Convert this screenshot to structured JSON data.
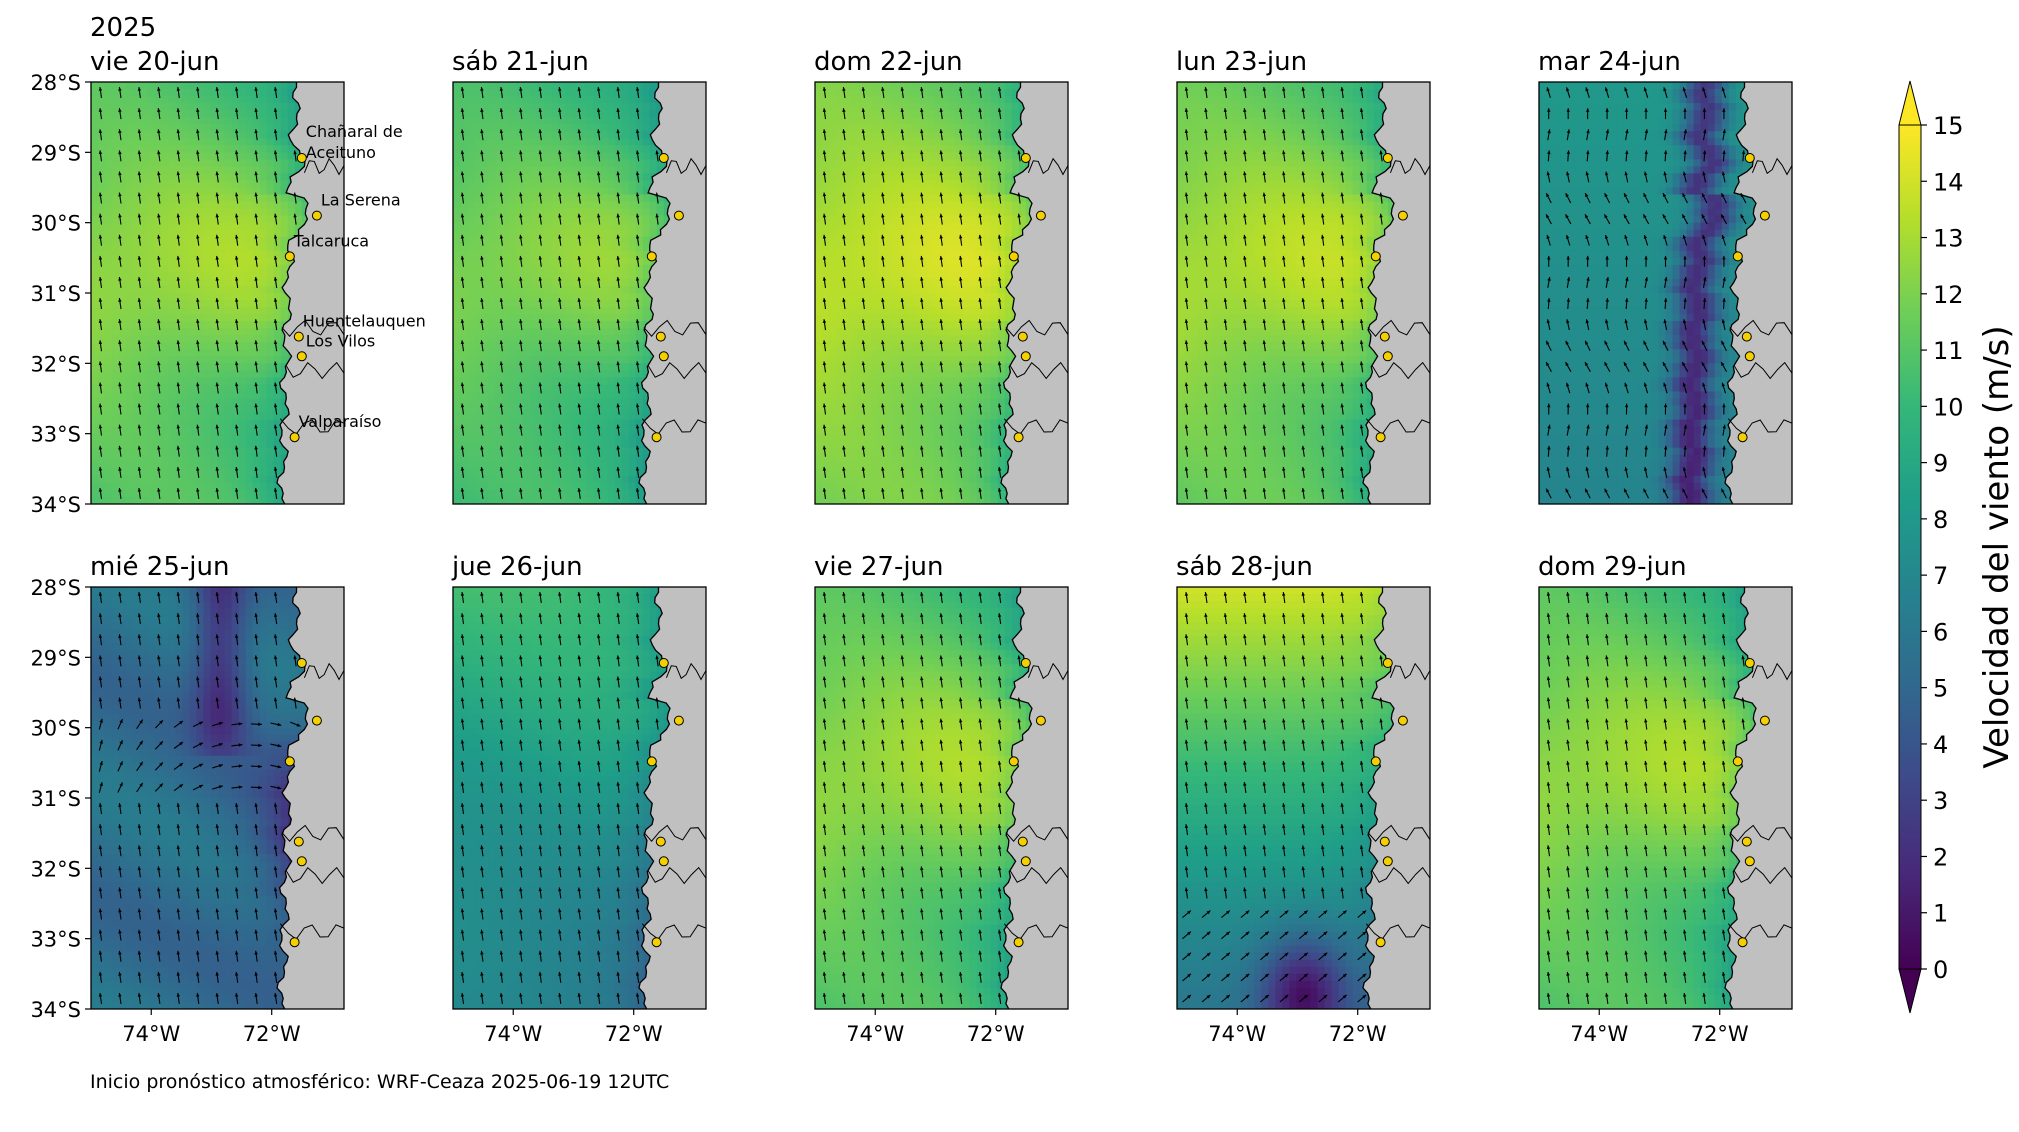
{
  "year_label": "2025",
  "footer": "Inicio pronóstico atmosférico: WRF-Ceaza 2025-06-19 12UTC",
  "panels": [
    {
      "date": "vie 20-jun",
      "regime": "strong",
      "peak": 13.0
    },
    {
      "date": "sáb 21-jun",
      "regime": "strong",
      "peak": 12.5
    },
    {
      "date": "dom 22-jun",
      "regime": "strong",
      "peak": 14.0
    },
    {
      "date": "lun 23-jun",
      "regime": "strong",
      "peak": 13.5
    },
    {
      "date": "mar 24-jun",
      "regime": "weak",
      "peak": 8.0
    },
    {
      "date": "mié 25-jun",
      "regime": "calm",
      "peak": 5.5
    },
    {
      "date": "jue 26-jun",
      "regime": "moderate",
      "peak": 10.0
    },
    {
      "date": "vie 27-jun",
      "regime": "strong",
      "peak": 13.0
    },
    {
      "date": "sáb 28-jun",
      "regime": "mixed",
      "peak": 14.0
    },
    {
      "date": "dom 29-jun",
      "regime": "strong",
      "peak": 13.0
    }
  ],
  "lat_ticks": [
    "28°S",
    "29°S",
    "30°S",
    "31°S",
    "32°S",
    "33°S",
    "34°S"
  ],
  "lon_ticks": [
    "74°W",
    "72°W"
  ],
  "map_extent": {
    "lon": [
      -75.0,
      -70.8
    ],
    "lat": [
      -34.0,
      -28.0
    ]
  },
  "locations": [
    {
      "name": "Chañaral de\nAceituno",
      "lon": -71.5,
      "lat": -29.08
    },
    {
      "name": "La Serena",
      "lon": -71.25,
      "lat": -29.9
    },
    {
      "name": "Talcaruca",
      "lon": -71.7,
      "lat": -30.48
    },
    {
      "name": "Huentelauquen",
      "lon": -71.55,
      "lat": -31.62
    },
    {
      "name": "Los Vilos",
      "lon": -71.5,
      "lat": -31.9
    },
    {
      "name": "Valparaíso",
      "lon": -71.62,
      "lat": -33.05
    }
  ],
  "colorbar": {
    "label": "Velocidad del viento (m/s)",
    "min": 0,
    "max": 15,
    "ticks": [
      "0",
      "1",
      "2",
      "3",
      "4",
      "5",
      "6",
      "7",
      "8",
      "9",
      "10",
      "11",
      "12",
      "13",
      "14",
      "15"
    ],
    "colormap": "viridis",
    "colors": [
      "#440154",
      "#482878",
      "#3e4989",
      "#31688e",
      "#26828e",
      "#1f9e89",
      "#35b779",
      "#6ece58",
      "#b5de2b",
      "#fde725"
    ]
  },
  "land_color": "#c0c0c0",
  "marker_color": "#f5d000"
}
